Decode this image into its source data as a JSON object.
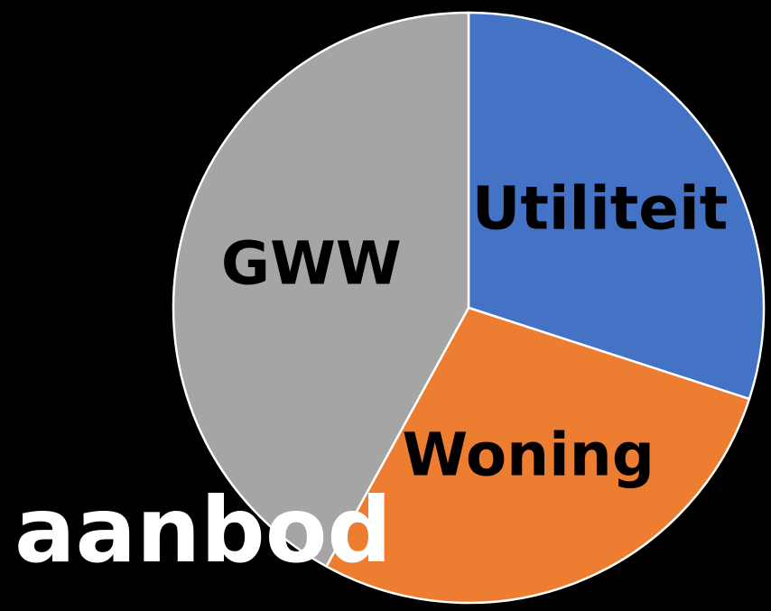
{
  "chart_data": {
    "type": "pie",
    "categories": [
      "Utiliteit",
      "Woning",
      "GWW"
    ],
    "values": [
      30,
      28,
      42
    ],
    "colors": [
      "#4472c4",
      "#ed7d31",
      "#a5a5a5"
    ],
    "caption": "aanbod"
  }
}
